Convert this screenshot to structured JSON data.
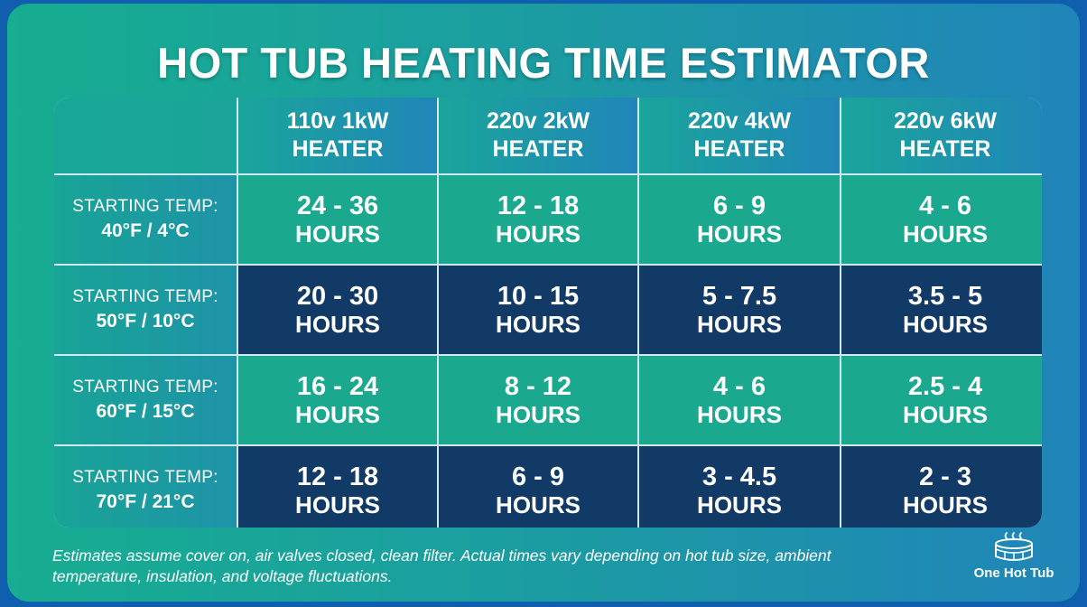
{
  "title": "HOT TUB HEATING TIME ESTIMATOR",
  "columns": [
    {
      "line1": "110v 1kW",
      "line2": "HEATER"
    },
    {
      "line1": "220v 2kW",
      "line2": "HEATER"
    },
    {
      "line1": "220v 4kW",
      "line2": "HEATER"
    },
    {
      "line1": "220v 6kW",
      "line2": "HEATER"
    }
  ],
  "rows": [
    {
      "label_line1": "STARTING TEMP:",
      "label_line2": "40°F / 4°C",
      "shade": "teal",
      "cells": [
        {
          "range": "24 - 36",
          "unit": "HOURS"
        },
        {
          "range": "12 - 18",
          "unit": "HOURS"
        },
        {
          "range": "6 - 9",
          "unit": "HOURS"
        },
        {
          "range": "4 - 6",
          "unit": "HOURS"
        }
      ]
    },
    {
      "label_line1": "STARTING TEMP:",
      "label_line2": "50°F / 10°C",
      "shade": "navy",
      "cells": [
        {
          "range": "20 - 30",
          "unit": "HOURS"
        },
        {
          "range": "10 - 15",
          "unit": "HOURS"
        },
        {
          "range": "5 - 7.5",
          "unit": "HOURS"
        },
        {
          "range": "3.5 - 5",
          "unit": "HOURS"
        }
      ]
    },
    {
      "label_line1": "STARTING TEMP:",
      "label_line2": "60°F / 15°C",
      "shade": "teal",
      "cells": [
        {
          "range": "16 - 24",
          "unit": "HOURS"
        },
        {
          "range": "8 - 12",
          "unit": "HOURS"
        },
        {
          "range": "4 - 6",
          "unit": "HOURS"
        },
        {
          "range": "2.5 - 4",
          "unit": "HOURS"
        }
      ]
    },
    {
      "label_line1": "STARTING TEMP:",
      "label_line2": "70°F / 21°C",
      "shade": "navy",
      "cells": [
        {
          "range": "12 - 18",
          "unit": "HOURS"
        },
        {
          "range": "6 - 9",
          "unit": "HOURS"
        },
        {
          "range": "3 - 4.5",
          "unit": "HOURS"
        },
        {
          "range": "2 - 3",
          "unit": "HOURS"
        }
      ]
    }
  ],
  "footnote": "Estimates assume cover on, air valves closed, clean filter. Actual times vary depending on hot tub size, ambient temperature, insulation, and voltage fluctuations.",
  "brand": {
    "name": "One Hot Tub",
    "icon": "hot-tub-icon"
  },
  "colors": {
    "teal_cell": "#1aa88f",
    "navy_cell": "#123a66",
    "text": "#ffffff"
  }
}
